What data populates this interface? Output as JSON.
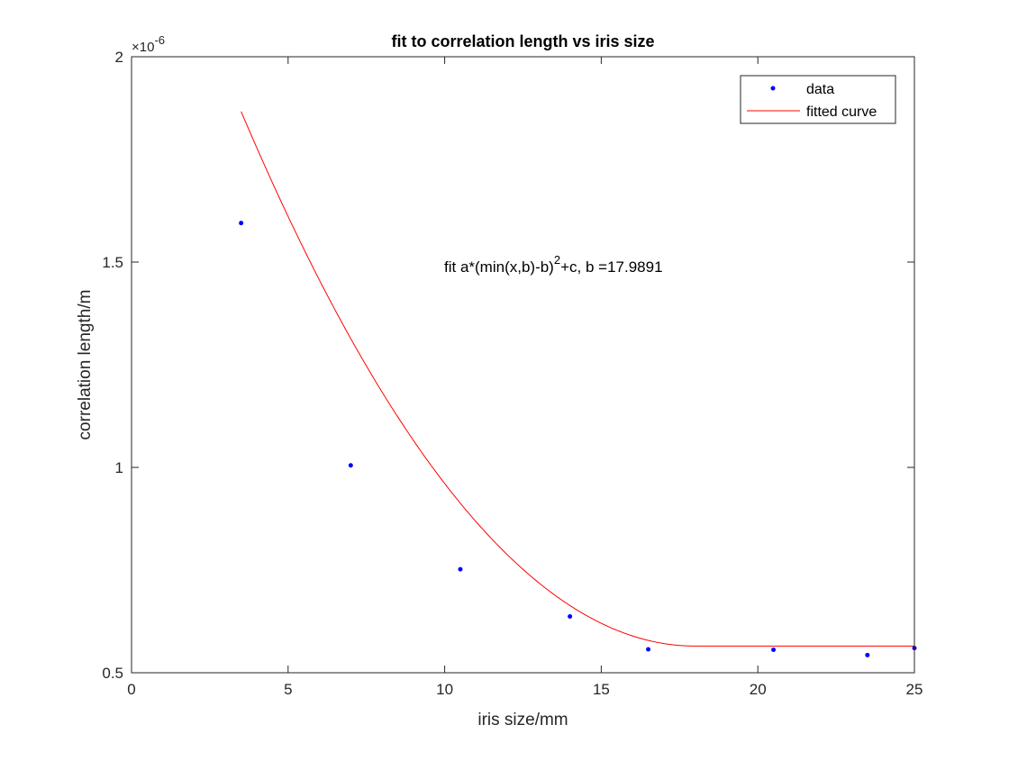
{
  "chart_data": {
    "type": "scatter",
    "title": "fit to correlation length vs iris size",
    "xlabel": "iris size/mm",
    "ylabel": "correlation length/m",
    "xlim": [
      0,
      25
    ],
    "ylim": [
      0.5,
      2
    ],
    "y_exponent": {
      "prefix": "×10",
      "exponent": "-6"
    },
    "xticks": [
      0,
      5,
      10,
      15,
      20,
      25
    ],
    "xtick_labels": [
      "0",
      "5",
      "10",
      "15",
      "20",
      "25"
    ],
    "yticks": [
      0.5,
      1,
      1.5,
      2
    ],
    "ytick_labels": [
      "0.5",
      "1",
      "1.5",
      "2"
    ],
    "grid": false,
    "legend_position": "top-right",
    "series": [
      {
        "name": "data",
        "kind": "points",
        "color": "#0000ff",
        "x": [
          3.5,
          7,
          10.5,
          14,
          16.5,
          20.5,
          23.5,
          25
        ],
        "y": [
          1.595,
          1.005,
          0.752,
          0.637,
          0.557,
          0.556,
          0.543,
          0.56
        ]
      },
      {
        "name": "fitted curve",
        "kind": "line",
        "color": "#ff0000",
        "model": {
          "a": 0.0062,
          "b": 17.9891,
          "c": 0.565
        },
        "x_range": [
          3.5,
          25
        ]
      }
    ],
    "annotation": {
      "main": "fit a*(min(x,b)-b)",
      "superscript": "2",
      "tail": "+c, b =17.9891"
    }
  }
}
